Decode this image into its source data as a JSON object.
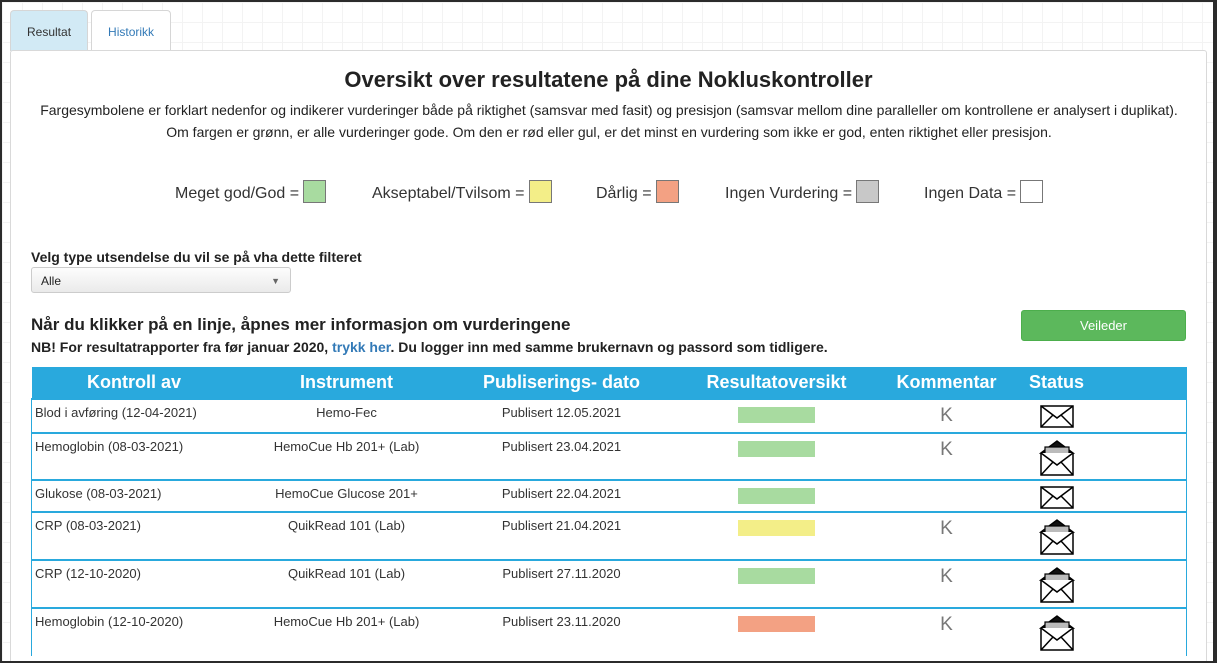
{
  "tabs": [
    {
      "label": "Resultat",
      "active": true
    },
    {
      "label": "Historikk",
      "active": false
    }
  ],
  "title": "Oversikt over resultatene på dine Nokluskontroller",
  "intro": "Fargesymbolene er forklart nedenfor og indikerer vurderinger både på riktighet (samsvar med fasit) og presisjon (samsvar mellom dine paralleller om kontrollene er analysert i duplikat). Om fargen er grønn, er alle vurderinger gode. Om den er rød eller gul, er det minst en vurdering som ikke er god, enten riktighet eller presisjon.",
  "legend": [
    {
      "label": "Meget god/God =",
      "color": "#a8dba0"
    },
    {
      "label": "Akseptabel/Tvilsom =",
      "color": "#f3ee88"
    },
    {
      "label": "Dårlig =",
      "color": "#f3a183"
    },
    {
      "label": "Ingen Vurdering =",
      "color": "#c8c8c8"
    },
    {
      "label": "Ingen Data =",
      "color": "#ffffff"
    }
  ],
  "filter": {
    "label": "Velg type utsendelse du vil se på vha dette filteret",
    "selected": "Alle"
  },
  "info": {
    "heading": "Når du klikker på en linje, åpnes mer informasjon om vurderingene",
    "note_prefix": "NB! For resultatrapporter fra før januar 2020, ",
    "note_link": "trykk her",
    "note_suffix": ". Du logger inn med samme brukernavn og passord som tidligere."
  },
  "guide_button": "Veileder",
  "table": {
    "headers": [
      "Kontroll av",
      "Instrument",
      "Publiserings- dato",
      "Resultatoversikt",
      "Kommentar",
      "Status"
    ],
    "rows": [
      {
        "kontroll": "Blod i avføring (12-04-2021)",
        "instrument": "Hemo-Fec",
        "dato": "Publisert 12.05.2021",
        "color": "#a8dba0",
        "kommentar": "K",
        "status": "closed-envelope-icon"
      },
      {
        "kontroll": "Hemoglobin (08-03-2021)",
        "instrument": "HemoCue Hb 201+ (Lab)",
        "dato": "Publisert 23.04.2021",
        "color": "#a8dba0",
        "kommentar": "K",
        "status": "open-envelope-icon"
      },
      {
        "kontroll": "Glukose (08-03-2021)",
        "instrument": "HemoCue Glucose 201+",
        "dato": "Publisert 22.04.2021",
        "color": "#a8dba0",
        "kommentar": "",
        "status": "closed-envelope-icon"
      },
      {
        "kontroll": "CRP (08-03-2021)",
        "instrument": "QuikRead 101 (Lab)",
        "dato": "Publisert 21.04.2021",
        "color": "#f3ee88",
        "kommentar": "K",
        "status": "open-envelope-icon"
      },
      {
        "kontroll": "CRP (12-10-2020)",
        "instrument": "QuikRead 101 (Lab)",
        "dato": "Publisert 27.11.2020",
        "color": "#a8dba0",
        "kommentar": "K",
        "status": "open-envelope-icon"
      },
      {
        "kontroll": "Hemoglobin (12-10-2020)",
        "instrument": "HemoCue Hb 201+ (Lab)",
        "dato": "Publisert 23.11.2020",
        "color": "#f3a183",
        "kommentar": "K",
        "status": "open-envelope-icon"
      }
    ]
  }
}
